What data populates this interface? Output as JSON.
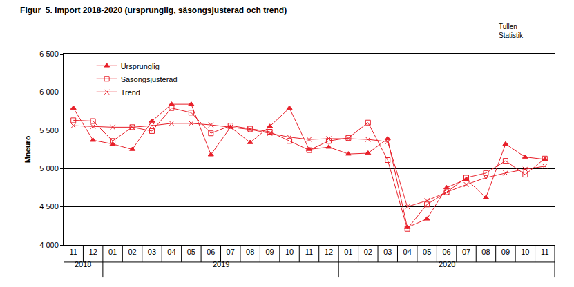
{
  "chart_data": {
    "type": "line",
    "title": "Figur  5. Import 2018-2020 (ursprunglig, säsongsjusterad och trend)",
    "source": [
      "Tullen",
      "Statistik"
    ],
    "y_label": "Mneuro",
    "categories": [
      "11",
      "12",
      "01",
      "02",
      "03",
      "04",
      "05",
      "06",
      "07",
      "08",
      "09",
      "10",
      "11",
      "12",
      "01",
      "02",
      "03",
      "04",
      "05",
      "06",
      "07",
      "08",
      "09",
      "10",
      "11"
    ],
    "years": [
      "2018",
      "2018",
      "2019",
      "2019",
      "2019",
      "2019",
      "2019",
      "2019",
      "2019",
      "2019",
      "2019",
      "2019",
      "2019",
      "2019",
      "2020",
      "2020",
      "2020",
      "2020",
      "2020",
      "2020",
      "2020",
      "2020",
      "2020",
      "2020",
      "2020"
    ],
    "series": [
      {
        "name": "Ursprunglig",
        "color": "#e8202a",
        "marker": "triangle",
        "values": [
          5790,
          5370,
          5320,
          5250,
          5620,
          5840,
          5840,
          5180,
          5540,
          5340,
          5550,
          5790,
          5250,
          5280,
          5190,
          5200,
          5390,
          4230,
          4340,
          4750,
          4860,
          4620,
          5320,
          5150,
          5120
        ]
      },
      {
        "name": "Säsongsjusterad",
        "color": "#e8202a",
        "marker": "square-open",
        "values": [
          5630,
          5620,
          5360,
          5540,
          5490,
          5790,
          5730,
          5460,
          5560,
          5520,
          5480,
          5360,
          5240,
          5360,
          5400,
          5600,
          5110,
          4210,
          4530,
          4690,
          4880,
          4940,
          5100,
          4920,
          5130
        ]
      },
      {
        "name": "Trend",
        "color": "#e8202a",
        "marker": "x",
        "values": [
          5560,
          5550,
          5540,
          5540,
          5560,
          5590,
          5590,
          5570,
          5540,
          5510,
          5460,
          5410,
          5380,
          5390,
          5390,
          5380,
          5350,
          4500,
          4580,
          4690,
          4790,
          4880,
          4940,
          4990,
          5030
        ]
      }
    ],
    "ylim": [
      4000,
      6500
    ],
    "yticks": [
      {
        "value": 4000,
        "label": "4 000"
      },
      {
        "value": 4500,
        "label": "4 500"
      },
      {
        "value": 5000,
        "label": "5 000"
      },
      {
        "value": 5500,
        "label": "5 500"
      },
      {
        "value": 6000,
        "label": "6 000"
      },
      {
        "value": 6500,
        "label": "6 500"
      }
    ],
    "grid": true,
    "legend": "top-left"
  }
}
